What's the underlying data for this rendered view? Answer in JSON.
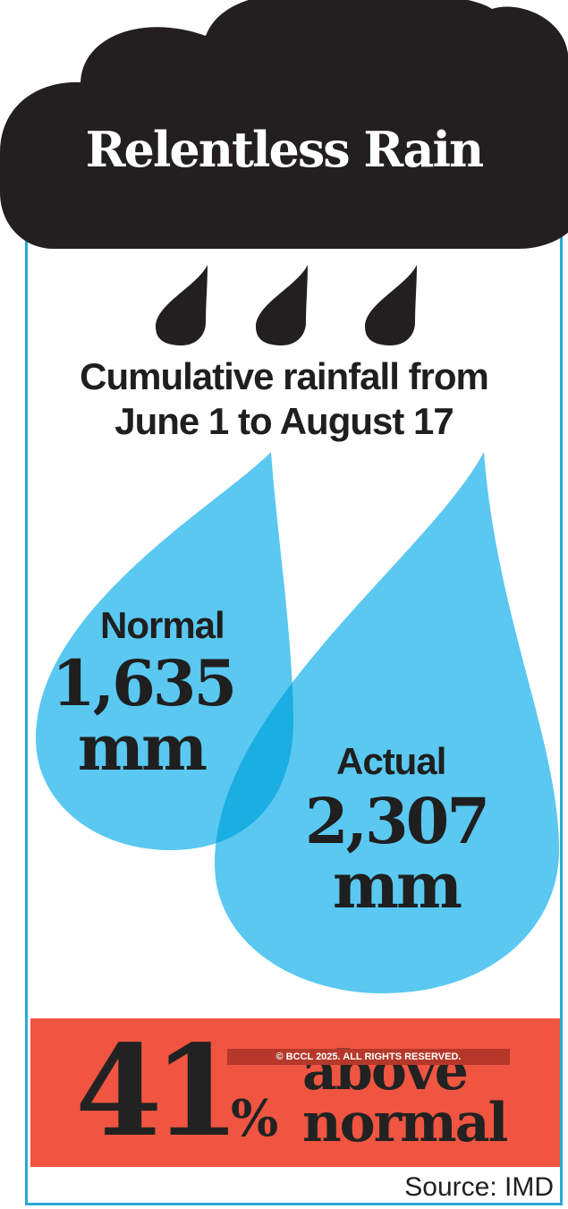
{
  "header": {
    "title": "Relentless Rain",
    "subtitle_line1": "Cumulative rainfall from",
    "subtitle_line2": "June 1 to August 17"
  },
  "chart_data": {
    "type": "bar",
    "title": "Relentless Rain",
    "subtitle": "Cumulative rainfall from June 1 to August 17",
    "categories": [
      "Normal",
      "Actual"
    ],
    "values": [
      1635,
      2307
    ],
    "unit": "mm",
    "value_labels": [
      "1,635",
      "2,307"
    ],
    "unit_label": "mm",
    "difference_label": "41% above normal",
    "difference_percent": "41",
    "difference_sign": "%",
    "difference_text_line1": "above",
    "difference_text_line2": "normal"
  },
  "watermark": "© BCCL 2025. ALL RIGHTS RESERVED.",
  "source": "Source: IMD",
  "colors": {
    "cloud": "#231f20",
    "drop": "#5ac8f0",
    "drop_overlap": "#1aaee2",
    "banner": "#ef5541",
    "frame": "#2ba8d8"
  },
  "icons": [
    "cloud-icon",
    "raindrop-icon",
    "raindrop-icon",
    "raindrop-icon"
  ]
}
